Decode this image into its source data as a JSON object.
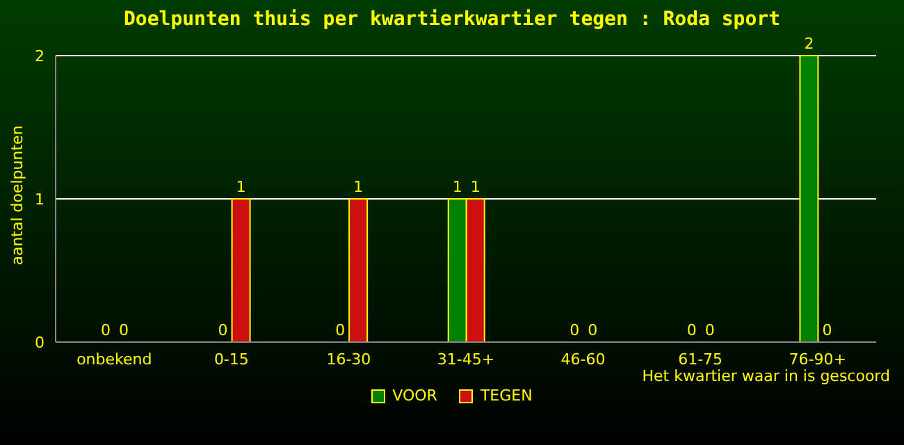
{
  "chart_data": {
    "type": "bar",
    "title": "Doelpunten thuis per kwartierkwartier tegen : Roda sport",
    "xlabel": "Het kwartier waar in is gescoord",
    "ylabel": "aantal doelpunten",
    "categories": [
      "onbekend",
      "0-15",
      "16-30",
      "31-45+",
      "46-60",
      "61-75",
      "76-90+"
    ],
    "series": [
      {
        "name": "VOOR",
        "color": "#008000",
        "values": [
          0,
          0,
          0,
          1,
          0,
          0,
          2
        ]
      },
      {
        "name": "TEGEN",
        "color": "#cc1010",
        "values": [
          0,
          1,
          1,
          1,
          0,
          0,
          0
        ]
      }
    ],
    "ylim": [
      0,
      2
    ],
    "yticks": [
      0,
      1,
      2
    ],
    "grid": "y",
    "legend": "bottom",
    "data_labels": true
  }
}
